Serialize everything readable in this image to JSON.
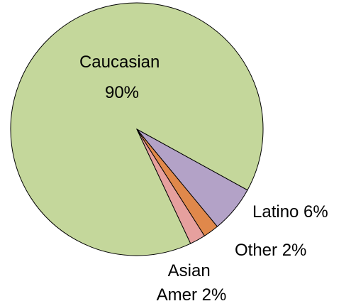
{
  "chart_data": {
    "type": "pie",
    "slices": [
      {
        "label": "Caucasian",
        "value": 90,
        "value_label": "90%",
        "color": "#c4d79b"
      },
      {
        "label": "Latino",
        "value": 6,
        "value_label": "6%",
        "color": "#b3a2c7"
      },
      {
        "label": "Other",
        "value": 2,
        "value_label": "2%",
        "color": "#e0884b"
      },
      {
        "label": "Asian Amer",
        "value": 2,
        "value_label": "2%",
        "color": "#e6a09e"
      }
    ],
    "label_lines": [
      [
        "Caucasian",
        "90%"
      ],
      [
        "Latino 6%"
      ],
      [
        "Other 2%"
      ],
      [
        "Asian",
        "Amer 2%"
      ]
    ],
    "legend": false
  }
}
